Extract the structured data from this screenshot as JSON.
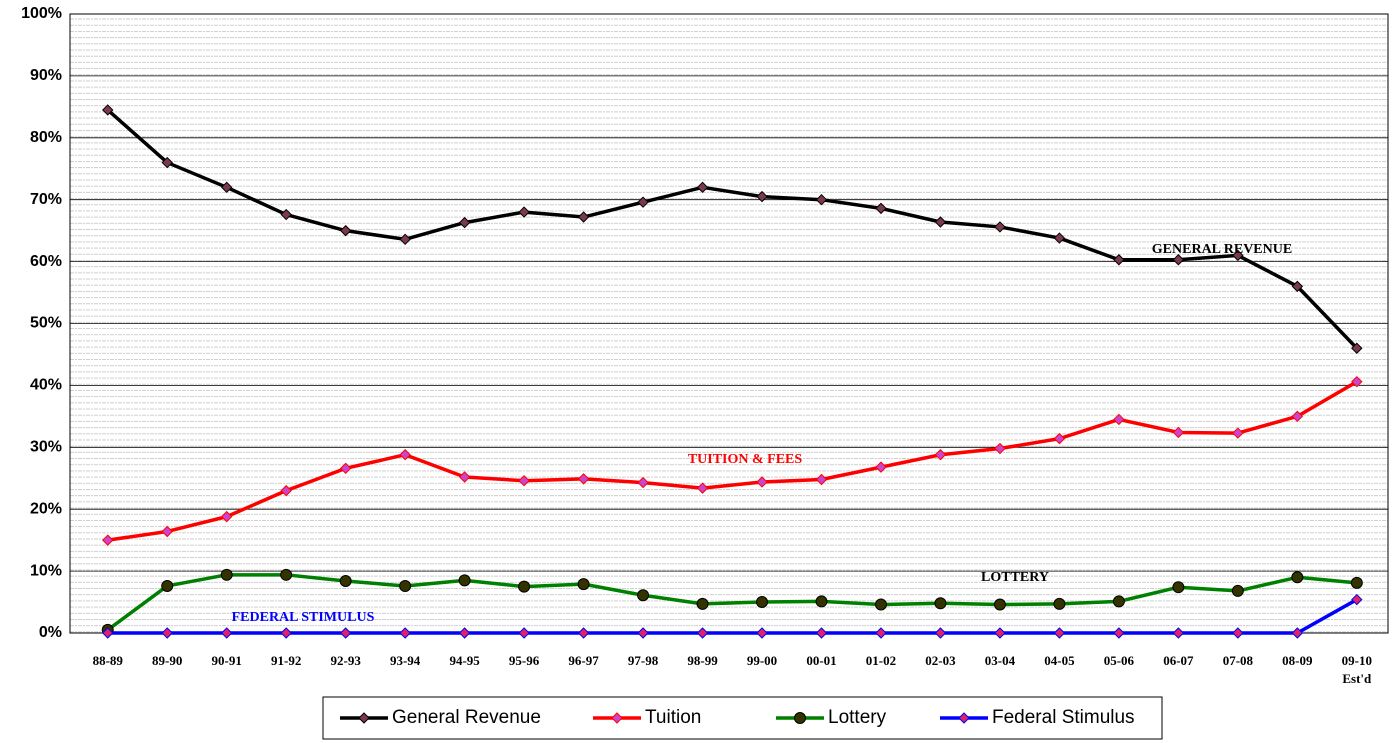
{
  "chart_data": {
    "type": "line",
    "categories": [
      "88-89",
      "89-90",
      "90-91",
      "91-92",
      "92-93",
      "93-94",
      "94-95",
      "95-96",
      "96-97",
      "97-98",
      "98-99",
      "99-00",
      "00-01",
      "01-02",
      "02-03",
      "03-04",
      "04-05",
      "05-06",
      "06-07",
      "07-08",
      "08-09",
      "09-10\nEst'd"
    ],
    "series": [
      {
        "name": "General Revenue",
        "color": "#000000",
        "marker": "diamond",
        "marker_color": "#7a3a4a",
        "values": [
          84.5,
          76,
          72,
          67.6,
          65,
          63.6,
          66.3,
          68,
          67.2,
          69.6,
          72,
          70.5,
          70,
          68.6,
          66.4,
          65.6,
          63.8,
          60.3,
          60.3,
          61,
          56,
          46
        ]
      },
      {
        "name": "Tuition",
        "color": "#ff0000",
        "marker": "diamond",
        "marker_color": "#cc44cc",
        "values": [
          15,
          16.4,
          18.8,
          23,
          26.6,
          28.8,
          25.2,
          24.6,
          24.9,
          24.3,
          23.4,
          24.4,
          24.8,
          26.8,
          28.8,
          29.8,
          31.4,
          34.5,
          32.4,
          32.3,
          35,
          40.6
        ]
      },
      {
        "name": "Lottery",
        "color": "#008000",
        "marker": "circle",
        "marker_color": "#333300",
        "values": [
          0.5,
          7.6,
          9.4,
          9.4,
          8.4,
          7.6,
          8.5,
          7.5,
          7.9,
          6.1,
          4.7,
          5.0,
          5.1,
          4.6,
          4.8,
          4.6,
          4.7,
          5.1,
          7.4,
          6.8,
          9.0,
          8.1
        ]
      },
      {
        "name": "Federal Stimulus",
        "color": "#0000ff",
        "marker": "diamond",
        "marker_color": "#dd2266",
        "values": [
          0,
          0,
          0,
          0,
          0,
          0,
          0,
          0,
          0,
          0,
          0,
          0,
          0,
          0,
          0,
          0,
          0,
          0,
          0,
          0,
          0,
          5.4
        ]
      }
    ],
    "annotations": [
      {
        "text": "GENERAL REVENUE",
        "color": "#000000"
      },
      {
        "text": "TUITION & FEES",
        "color": "#ff0000"
      },
      {
        "text": "LOTTERY",
        "color": "#000000"
      },
      {
        "text": "FEDERAL STIMULUS",
        "color": "#0000ff"
      }
    ],
    "ylim": [
      0,
      100
    ],
    "yticks": [
      {
        "value": 0,
        "label": "0%"
      },
      {
        "value": 10,
        "label": "10%"
      },
      {
        "value": 20,
        "label": "20%"
      },
      {
        "value": 30,
        "label": "30%"
      },
      {
        "value": 40,
        "label": "40%"
      },
      {
        "value": 50,
        "label": "50%"
      },
      {
        "value": 60,
        "label": "60%"
      },
      {
        "value": 70,
        "label": "70%"
      },
      {
        "value": 80,
        "label": "80%"
      },
      {
        "value": 90,
        "label": "90%"
      },
      {
        "value": 100,
        "label": "100%"
      }
    ],
    "grid": true,
    "legend": "bottom"
  }
}
